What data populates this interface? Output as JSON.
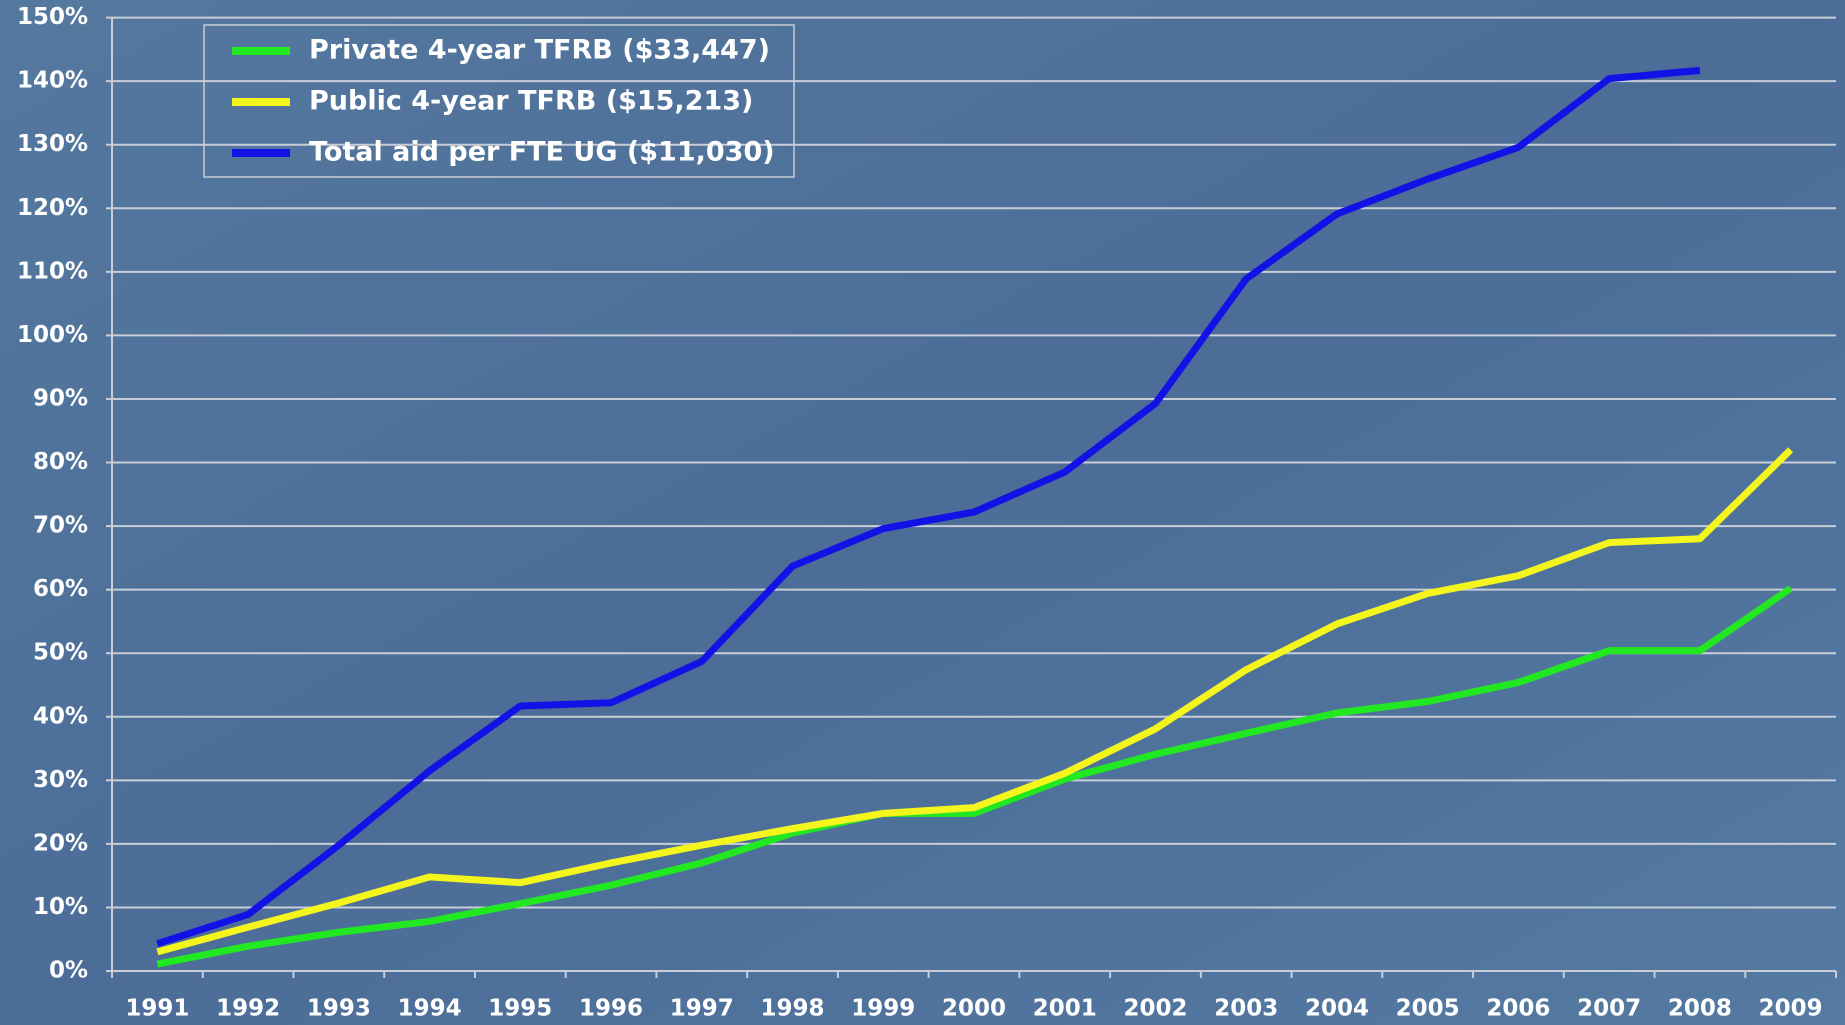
{
  "chart_data": {
    "type": "line",
    "categories": [
      "1991",
      "1992",
      "1993",
      "1994",
      "1995",
      "1996",
      "1997",
      "1998",
      "1999",
      "2000",
      "2001",
      "2002",
      "2003",
      "2004",
      "2005",
      "2006",
      "2007",
      "2008",
      "2009"
    ],
    "series": [
      {
        "name": "Private 4-year TFRB ($33,447)",
        "color": "#22e822",
        "values": [
          1.1,
          3.9,
          6.1,
          7.8,
          10.6,
          13.5,
          17.0,
          21.7,
          24.8,
          24.8,
          30.2,
          34.1,
          37.4,
          40.6,
          42.4,
          45.4,
          50.4,
          50.4,
          60.2
        ]
      },
      {
        "name": "Public 4-year TFRB ($15,213)",
        "color": "#f5f51e",
        "values": [
          3.0,
          6.9,
          10.7,
          14.8,
          13.9,
          17.0,
          19.8,
          22.4,
          24.8,
          25.7,
          31.1,
          38.1,
          47.4,
          54.6,
          59.4,
          62.2,
          67.4,
          68.0,
          82.0
        ]
      },
      {
        "name": "Total aid per FTE UG ($11,030)",
        "color": "#1212e6",
        "values": [
          4.3,
          8.9,
          19.8,
          31.5,
          41.7,
          42.2,
          48.7,
          63.7,
          69.6,
          72.2,
          78.5,
          89.3,
          108.9,
          119.1,
          124.6,
          129.6,
          140.4,
          141.7,
          null
        ]
      }
    ],
    "ylim": [
      0,
      150
    ],
    "yticks": [
      {
        "value": 0,
        "label": "0%"
      },
      {
        "value": 10,
        "label": "10%"
      },
      {
        "value": 20,
        "label": "20%"
      },
      {
        "value": 30,
        "label": "30%"
      },
      {
        "value": 40,
        "label": "40%"
      },
      {
        "value": 50,
        "label": "50%"
      },
      {
        "value": 60,
        "label": "60%"
      },
      {
        "value": 70,
        "label": "70%"
      },
      {
        "value": 80,
        "label": "80%"
      },
      {
        "value": 90,
        "label": "90%"
      },
      {
        "value": 100,
        "label": "100%"
      },
      {
        "value": 110,
        "label": "110%"
      },
      {
        "value": 120,
        "label": "120%"
      },
      {
        "value": 130,
        "label": "130%"
      },
      {
        "value": 140,
        "label": "140%"
      },
      {
        "value": 150,
        "label": "150%"
      }
    ],
    "grid": true,
    "legend": "top-left"
  }
}
